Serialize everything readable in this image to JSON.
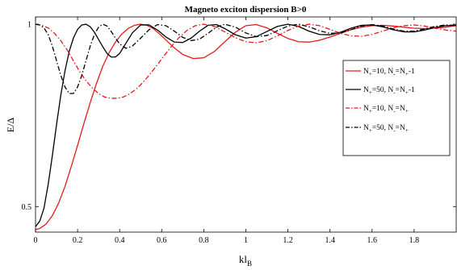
{
  "chart_data": {
    "type": "line",
    "title": "Magneto exciton dispersion B>0",
    "xlabel": "kl",
    "xlabel_sub": "B",
    "ylabel": "E/Δ",
    "xlim": [
      0,
      2.0
    ],
    "ylim": [
      0.43,
      1.02
    ],
    "x_ticks": [
      {
        "v": 0,
        "label": "0"
      },
      {
        "v": 0.2,
        "label": "0.2"
      },
      {
        "v": 0.4,
        "label": "0.4"
      },
      {
        "v": 0.6,
        "label": "0.6"
      },
      {
        "v": 0.8,
        "label": "0.8"
      },
      {
        "v": 1.0,
        "label": "1"
      },
      {
        "v": 1.2,
        "label": "1.2"
      },
      {
        "v": 1.4,
        "label": "1.4"
      },
      {
        "v": 1.6,
        "label": "1.6"
      },
      {
        "v": 1.8,
        "label": "1.8"
      }
    ],
    "y_ticks": [
      {
        "v": 0.5,
        "label": "0.5"
      },
      {
        "v": 1.0,
        "label": "1"
      }
    ],
    "grid": false,
    "legend_position": "right",
    "series": [
      {
        "legend": [
          {
            "t": "N"
          },
          {
            "t": "+",
            "sub": true
          },
          {
            "t": "=10, N"
          },
          {
            "t": "-",
            "sub": true
          },
          {
            "t": "=N"
          },
          {
            "t": "+",
            "sub": true
          },
          {
            "t": "-1"
          }
        ],
        "color": "#e41a1c",
        "dash": "solid",
        "x": [
          0,
          0.02,
          0.05,
          0.08,
          0.11,
          0.14,
          0.17,
          0.2,
          0.23,
          0.26,
          0.29,
          0.32,
          0.35,
          0.38,
          0.41,
          0.44,
          0.47,
          0.5,
          0.53,
          0.56,
          0.6,
          0.65,
          0.7,
          0.75,
          0.8,
          0.85,
          0.9,
          0.95,
          1.0,
          1.05,
          1.1,
          1.15,
          1.2,
          1.25,
          1.3,
          1.35,
          1.4,
          1.45,
          1.5,
          1.55,
          1.6,
          1.65,
          1.7,
          1.75,
          1.8,
          1.85,
          1.9,
          1.95,
          2.0
        ],
        "y": [
          0.437,
          0.44,
          0.452,
          0.475,
          0.51,
          0.555,
          0.61,
          0.668,
          0.728,
          0.785,
          0.838,
          0.885,
          0.922,
          0.951,
          0.973,
          0.988,
          0.997,
          1.0,
          0.997,
          0.988,
          0.968,
          0.94,
          0.917,
          0.906,
          0.908,
          0.925,
          0.952,
          0.978,
          0.996,
          0.999,
          0.99,
          0.975,
          0.961,
          0.952,
          0.951,
          0.956,
          0.965,
          0.975,
          0.985,
          0.992,
          0.996,
          0.997,
          0.995,
          0.992,
          0.989,
          0.988,
          0.989,
          0.992,
          0.996
        ]
      },
      {
        "legend": [
          {
            "t": "N"
          },
          {
            "t": "+",
            "sub": true
          },
          {
            "t": "=50, N"
          },
          {
            "t": "-",
            "sub": true
          },
          {
            "t": "=N"
          },
          {
            "t": "+",
            "sub": true
          },
          {
            "t": "-1"
          }
        ],
        "color": "#000000",
        "dash": "solid",
        "x": [
          0,
          0.02,
          0.04,
          0.06,
          0.08,
          0.1,
          0.12,
          0.14,
          0.16,
          0.18,
          0.2,
          0.22,
          0.24,
          0.26,
          0.28,
          0.3,
          0.32,
          0.34,
          0.36,
          0.38,
          0.4,
          0.43,
          0.46,
          0.5,
          0.54,
          0.58,
          0.62,
          0.66,
          0.7,
          0.74,
          0.78,
          0.82,
          0.86,
          0.9,
          0.95,
          1.0,
          1.05,
          1.1,
          1.15,
          1.2,
          1.25,
          1.3,
          1.35,
          1.4,
          1.45,
          1.5,
          1.55,
          1.6,
          1.65,
          1.7,
          1.75,
          1.8,
          1.85,
          1.9,
          1.95,
          2.0
        ],
        "y": [
          0.445,
          0.46,
          0.495,
          0.56,
          0.64,
          0.725,
          0.805,
          0.872,
          0.925,
          0.962,
          0.986,
          0.998,
          1.0,
          0.993,
          0.978,
          0.958,
          0.938,
          0.92,
          0.91,
          0.91,
          0.92,
          0.948,
          0.976,
          0.998,
          0.998,
          0.984,
          0.965,
          0.951,
          0.95,
          0.962,
          0.981,
          0.997,
          0.999,
          0.988,
          0.971,
          0.962,
          0.966,
          0.98,
          0.994,
          1.0,
          0.994,
          0.981,
          0.972,
          0.971,
          0.978,
          0.989,
          0.997,
          0.998,
          0.993,
          0.985,
          0.979,
          0.979,
          0.984,
          0.991,
          0.996,
          0.997
        ]
      },
      {
        "legend": [
          {
            "t": "N"
          },
          {
            "t": "+",
            "sub": true
          },
          {
            "t": "=10, N"
          },
          {
            "t": "-",
            "sub": true
          },
          {
            "t": "=N"
          },
          {
            "t": "+",
            "sub": true
          }
        ],
        "color": "#e41a1c",
        "dash": "dashdot",
        "x": [
          0,
          0.03,
          0.06,
          0.09,
          0.12,
          0.15,
          0.18,
          0.21,
          0.24,
          0.27,
          0.3,
          0.33,
          0.36,
          0.39,
          0.42,
          0.45,
          0.48,
          0.51,
          0.54,
          0.57,
          0.6,
          0.64,
          0.68,
          0.72,
          0.76,
          0.8,
          0.85,
          0.9,
          0.95,
          1.0,
          1.05,
          1.1,
          1.15,
          1.2,
          1.25,
          1.3,
          1.35,
          1.4,
          1.45,
          1.5,
          1.55,
          1.6,
          1.65,
          1.7,
          1.75,
          1.8,
          1.85,
          1.9,
          1.95,
          2.0
        ],
        "y": [
          1.0,
          0.997,
          0.99,
          0.975,
          0.955,
          0.93,
          0.9,
          0.87,
          0.845,
          0.825,
          0.81,
          0.8,
          0.797,
          0.797,
          0.801,
          0.81,
          0.823,
          0.84,
          0.86,
          0.882,
          0.905,
          0.935,
          0.962,
          0.983,
          0.996,
          1.0,
          0.994,
          0.979,
          0.963,
          0.952,
          0.949,
          0.955,
          0.968,
          0.983,
          0.995,
          1.0,
          0.996,
          0.986,
          0.975,
          0.968,
          0.967,
          0.972,
          0.981,
          0.99,
          0.996,
          0.998,
          0.995,
          0.989,
          0.984,
          0.981
        ]
      },
      {
        "legend": [
          {
            "t": "N"
          },
          {
            "t": "+",
            "sub": true
          },
          {
            "t": "=50, N"
          },
          {
            "t": "-",
            "sub": true
          },
          {
            "t": "=N"
          },
          {
            "t": "+",
            "sub": true
          }
        ],
        "color": "#000000",
        "dash": "dashdot",
        "x": [
          0,
          0.02,
          0.04,
          0.06,
          0.08,
          0.1,
          0.12,
          0.14,
          0.16,
          0.18,
          0.2,
          0.22,
          0.24,
          0.26,
          0.28,
          0.3,
          0.32,
          0.34,
          0.36,
          0.38,
          0.4,
          0.43,
          0.46,
          0.5,
          0.54,
          0.58,
          0.62,
          0.66,
          0.7,
          0.74,
          0.78,
          0.82,
          0.86,
          0.9,
          0.95,
          1.0,
          1.05,
          1.1,
          1.15,
          1.2,
          1.25,
          1.3,
          1.35,
          1.4,
          1.45,
          1.5,
          1.55,
          1.6,
          1.65,
          1.7,
          1.75,
          1.8,
          1.85,
          1.9,
          1.95,
          2.0
        ],
        "y": [
          1.0,
          0.998,
          0.99,
          0.972,
          0.94,
          0.9,
          0.86,
          0.828,
          0.81,
          0.81,
          0.828,
          0.86,
          0.9,
          0.94,
          0.972,
          0.992,
          1.0,
          0.995,
          0.98,
          0.962,
          0.946,
          0.934,
          0.94,
          0.962,
          0.985,
          0.999,
          0.996,
          0.981,
          0.964,
          0.955,
          0.959,
          0.975,
          0.992,
          1.0,
          0.992,
          0.976,
          0.966,
          0.969,
          0.982,
          0.995,
          1.0,
          0.993,
          0.982,
          0.975,
          0.976,
          0.985,
          0.995,
          0.999,
          0.995,
          0.987,
          0.981,
          0.981,
          0.987,
          0.994,
          0.998,
          0.997
        ]
      }
    ]
  }
}
